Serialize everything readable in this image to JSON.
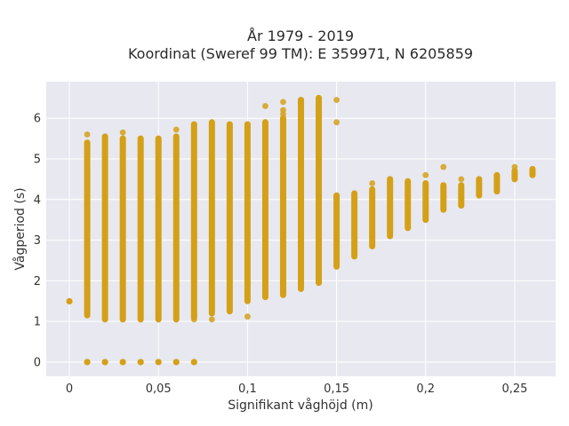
{
  "chart_data": {
    "type": "scatter",
    "title_line1": "År 1979 - 2019",
    "title_line2": "Koordinat (Sweref 99 TM): E 359971, N 6205859",
    "xlabel": "Signifikant våghöjd (m)",
    "ylabel": "Vågperiod (s)",
    "xlim": [
      -0.013,
      0.273
    ],
    "ylim": [
      -0.35,
      6.9
    ],
    "x_ticks": [
      0,
      0.05,
      0.1,
      0.15,
      0.2,
      0.25
    ],
    "x_tick_labels": [
      "0",
      "0,05",
      "0,1",
      "0,15",
      "0,2",
      "0,25"
    ],
    "y_ticks": [
      0,
      1,
      2,
      3,
      4,
      5,
      6
    ],
    "y_tick_labels": [
      "0",
      "1",
      "2",
      "3",
      "4",
      "5",
      "6"
    ],
    "grid": true,
    "colors": {
      "points": "#D4A017",
      "plot_bg": "#E8E8F0",
      "grid": "#ffffff"
    },
    "bands": [
      {
        "x": 0.0,
        "ymin": 1.47,
        "ymax": 1.52
      },
      {
        "x": 0.01,
        "ymin": 1.15,
        "ymax": 5.4,
        "outliers": [
          5.6,
          1.7,
          2.0
        ]
      },
      {
        "x": 0.02,
        "ymin": 1.05,
        "ymax": 5.55
      },
      {
        "x": 0.03,
        "ymin": 1.05,
        "ymax": 5.5,
        "outliers": [
          5.65
        ]
      },
      {
        "x": 0.04,
        "ymin": 1.05,
        "ymax": 5.5
      },
      {
        "x": 0.05,
        "ymin": 1.05,
        "ymax": 5.5
      },
      {
        "x": 0.06,
        "ymin": 1.05,
        "ymax": 5.55,
        "outliers": [
          5.72
        ]
      },
      {
        "x": 0.07,
        "ymin": 1.1,
        "ymax": 5.85,
        "outliers": [
          1.05
        ]
      },
      {
        "x": 0.08,
        "ymin": 1.2,
        "ymax": 5.9,
        "outliers": [
          1.05
        ]
      },
      {
        "x": 0.09,
        "ymin": 1.25,
        "ymax": 5.85
      },
      {
        "x": 0.1,
        "ymin": 1.5,
        "ymax": 5.85,
        "outliers": [
          1.12
        ]
      },
      {
        "x": 0.11,
        "ymin": 1.6,
        "ymax": 5.9,
        "outliers": [
          6.3
        ]
      },
      {
        "x": 0.12,
        "ymin": 1.65,
        "ymax": 6.0,
        "outliers": [
          6.1,
          6.2,
          6.4
        ]
      },
      {
        "x": 0.13,
        "ymin": 1.8,
        "ymax": 6.45
      },
      {
        "x": 0.14,
        "ymin": 1.95,
        "ymax": 6.5,
        "outliers": [
          4.5
        ]
      },
      {
        "x": 0.15,
        "ymin": 2.35,
        "ymax": 4.1,
        "outliers": [
          5.9,
          6.45
        ]
      },
      {
        "x": 0.16,
        "ymin": 2.6,
        "ymax": 4.15
      },
      {
        "x": 0.17,
        "ymin": 2.85,
        "ymax": 4.25,
        "outliers": [
          4.4
        ]
      },
      {
        "x": 0.18,
        "ymin": 3.1,
        "ymax": 4.5
      },
      {
        "x": 0.19,
        "ymin": 3.3,
        "ymax": 4.45
      },
      {
        "x": 0.2,
        "ymin": 3.5,
        "ymax": 4.4,
        "outliers": [
          4.6
        ]
      },
      {
        "x": 0.21,
        "ymin": 3.75,
        "ymax": 4.35,
        "outliers": [
          4.8
        ]
      },
      {
        "x": 0.22,
        "ymin": 3.85,
        "ymax": 4.35,
        "outliers": [
          4.5
        ]
      },
      {
        "x": 0.23,
        "ymin": 4.1,
        "ymax": 4.5
      },
      {
        "x": 0.24,
        "ymin": 4.2,
        "ymax": 4.6
      },
      {
        "x": 0.25,
        "ymin": 4.5,
        "ymax": 4.7,
        "outliers": [
          4.8
        ]
      },
      {
        "x": 0.26,
        "ymin": 4.6,
        "ymax": 4.75
      }
    ],
    "zero_points": [
      0.01,
      0.02,
      0.03,
      0.04,
      0.05,
      0.06,
      0.07
    ]
  }
}
